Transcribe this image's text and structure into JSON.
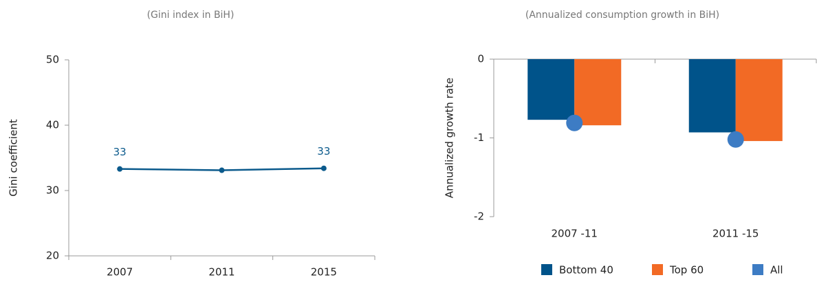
{
  "chart_data": [
    {
      "type": "line",
      "subtitle": "(Gini index in BiH)",
      "ylabel": "Gini coefficient",
      "categories": [
        "2007",
        "2011",
        "2015"
      ],
      "values": [
        33.3,
        33.1,
        33.4
      ],
      "value_labels": [
        "33",
        null,
        "33"
      ],
      "color": "#0b5a8c",
      "ylim": [
        20,
        50
      ],
      "yticks": [
        20,
        30,
        40,
        50
      ]
    },
    {
      "type": "bar",
      "subtitle": "(Annualized consumption growth in BiH)",
      "ylabel": "Annualized growth rate",
      "categories": [
        "2007 -11",
        "2011 -15"
      ],
      "series": [
        {
          "name": "Bottom 40",
          "color": "#00538a",
          "values": [
            -0.77,
            -0.93
          ]
        },
        {
          "name": "Top 60",
          "color": "#f26a25",
          "values": [
            -0.84,
            -1.04
          ]
        },
        {
          "name": "All",
          "color": "#3d7cc4",
          "values": [
            -0.81,
            -1.02
          ],
          "style": "dot"
        }
      ],
      "ylim": [
        -2,
        0
      ],
      "yticks": [
        -2,
        -1,
        0
      ],
      "legend": "bottom"
    }
  ]
}
